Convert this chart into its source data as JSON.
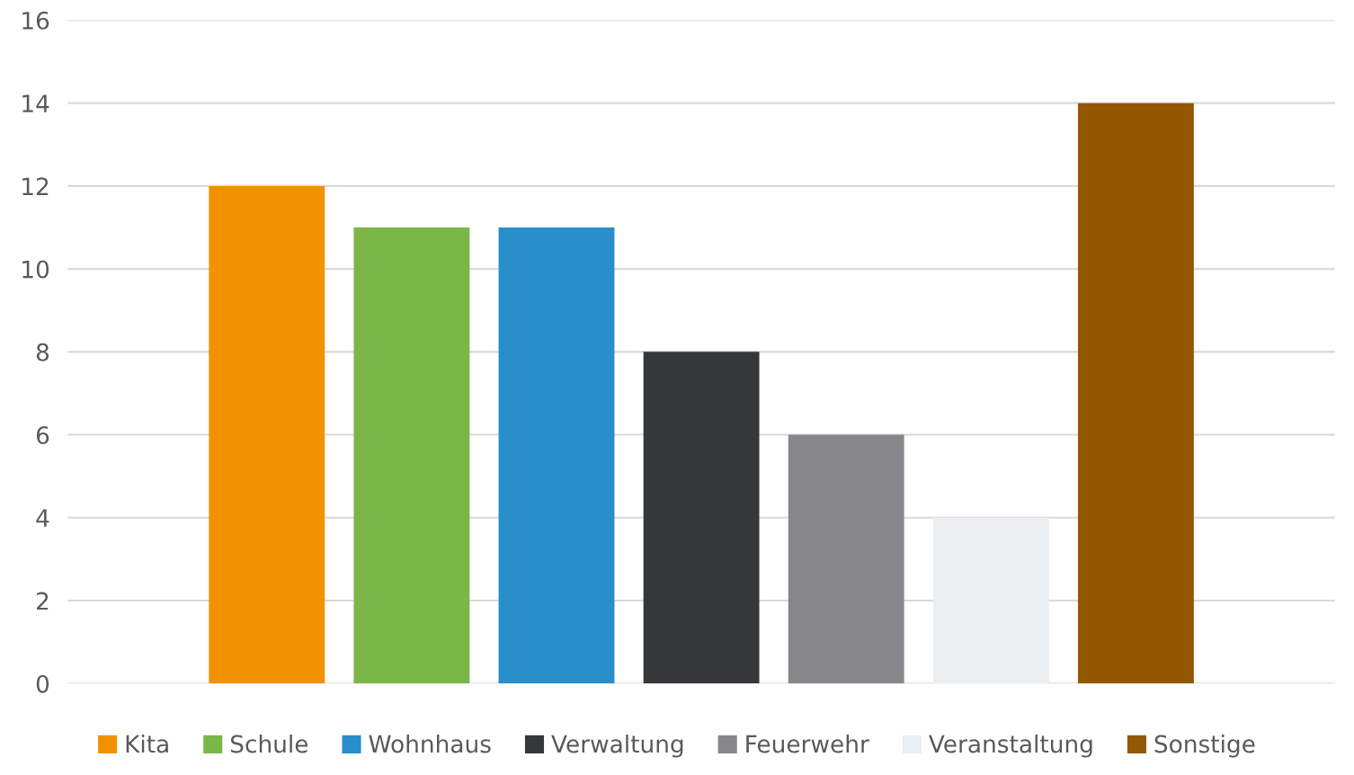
{
  "chart_data": {
    "type": "bar",
    "categories": [
      null
    ],
    "series": [
      {
        "name": "Kita",
        "color": "#f39200",
        "values": [
          12
        ]
      },
      {
        "name": "Schule",
        "color": "#7ab648",
        "values": [
          11
        ]
      },
      {
        "name": "Wohnhaus",
        "color": "#288fcb",
        "values": [
          11
        ]
      },
      {
        "name": "Verwaltung",
        "color": "#363739",
        "values": [
          8
        ]
      },
      {
        "name": "Feuerwehr",
        "color": "#87868b",
        "values": [
          6
        ]
      },
      {
        "name": "Veranstaltung",
        "color": "#eaeef1",
        "values": [
          4
        ]
      },
      {
        "name": "Sonstige",
        "color": "#935700",
        "values": [
          14
        ]
      }
    ],
    "ylim": [
      0,
      16
    ],
    "yticks": [
      0,
      2,
      4,
      6,
      8,
      10,
      12,
      14,
      16
    ],
    "grid": "y",
    "legend": "bottom"
  }
}
